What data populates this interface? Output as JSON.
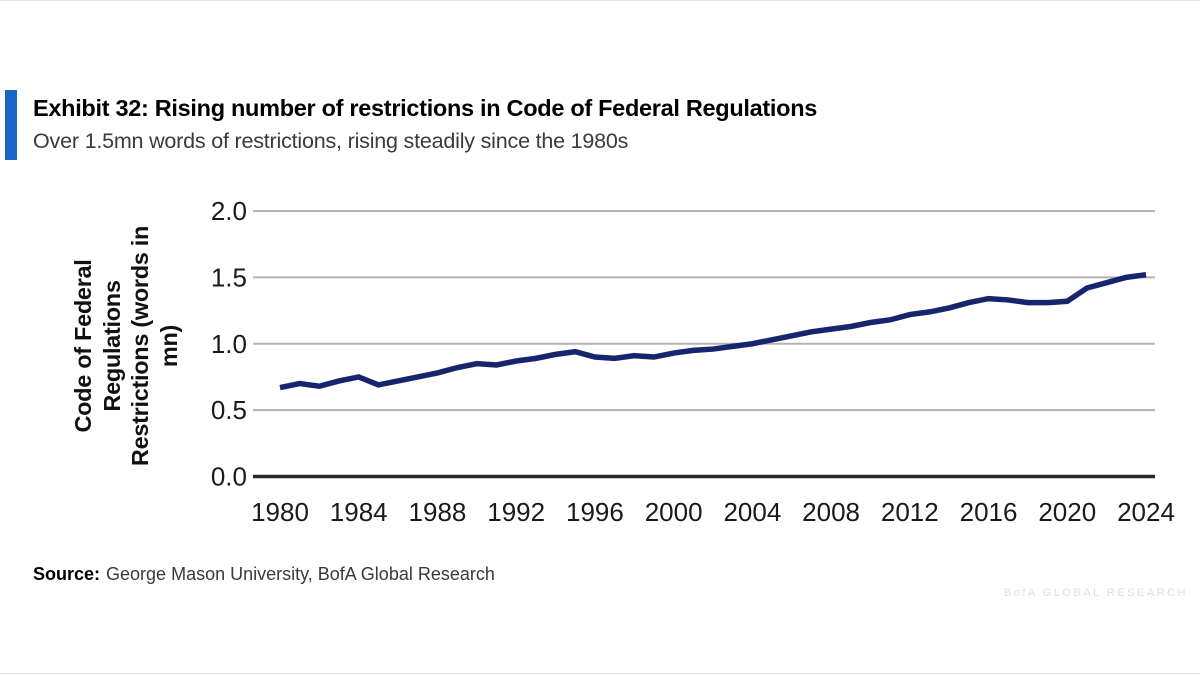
{
  "header": {
    "exhibit_title": "Exhibit 32: Rising number of restrictions in Code of Federal Regulations",
    "subtitle": "Over 1.5mn words of restrictions, rising steadily since the 1980s",
    "accent_color": "#1b66c9"
  },
  "chart_data": {
    "type": "line",
    "title": "Exhibit 32: Rising number of restrictions in Code of Federal Regulations",
    "subtitle": "Over 1.5mn words of restrictions, rising steadily since the 1980s",
    "ylabel": "Code of Federal Regulations Restrictions (words in mn)",
    "ylabel_lines": [
      "Code of Federal",
      "Regulations",
      "Restrictions (words in",
      "mn)"
    ],
    "xlabel": "",
    "x": [
      1980,
      1981,
      1982,
      1983,
      1984,
      1985,
      1986,
      1987,
      1988,
      1989,
      1990,
      1991,
      1992,
      1993,
      1994,
      1995,
      1996,
      1997,
      1998,
      1999,
      2000,
      2001,
      2002,
      2003,
      2004,
      2005,
      2006,
      2007,
      2008,
      2009,
      2010,
      2011,
      2012,
      2013,
      2014,
      2015,
      2016,
      2017,
      2018,
      2019,
      2020,
      2021,
      2022,
      2023,
      2024
    ],
    "values": [
      0.67,
      0.7,
      0.68,
      0.72,
      0.75,
      0.69,
      0.72,
      0.75,
      0.78,
      0.82,
      0.85,
      0.84,
      0.87,
      0.89,
      0.92,
      0.94,
      0.9,
      0.89,
      0.91,
      0.9,
      0.93,
      0.95,
      0.96,
      0.98,
      1.0,
      1.03,
      1.06,
      1.09,
      1.11,
      1.13,
      1.16,
      1.18,
      1.22,
      1.24,
      1.27,
      1.31,
      1.34,
      1.33,
      1.31,
      1.31,
      1.32,
      1.42,
      1.46,
      1.5,
      1.52
    ],
    "series_name": "CFR restrictions (words in mn)",
    "ylim": [
      0.0,
      2.0
    ],
    "yticks": [
      0.0,
      0.5,
      1.0,
      1.5,
      2.0
    ],
    "ytick_labels": [
      "0.0",
      "0.5",
      "1.0",
      "1.5",
      "2.0"
    ],
    "xticks": [
      1980,
      1984,
      1988,
      1992,
      1996,
      2000,
      2004,
      2008,
      2012,
      2016,
      2020,
      2024
    ],
    "grid": "horizontal-gridlines-on",
    "legend": "none",
    "line_color": "#17256e",
    "gridline_color": "#b3b3b3",
    "axis_color": "#2a2a2a",
    "tick_label_color": "#1a1a1a"
  },
  "source": {
    "label": "Source:",
    "text": "George Mason University, BofA Global Research"
  },
  "watermark": "BofA GLOBAL RESEARCH"
}
